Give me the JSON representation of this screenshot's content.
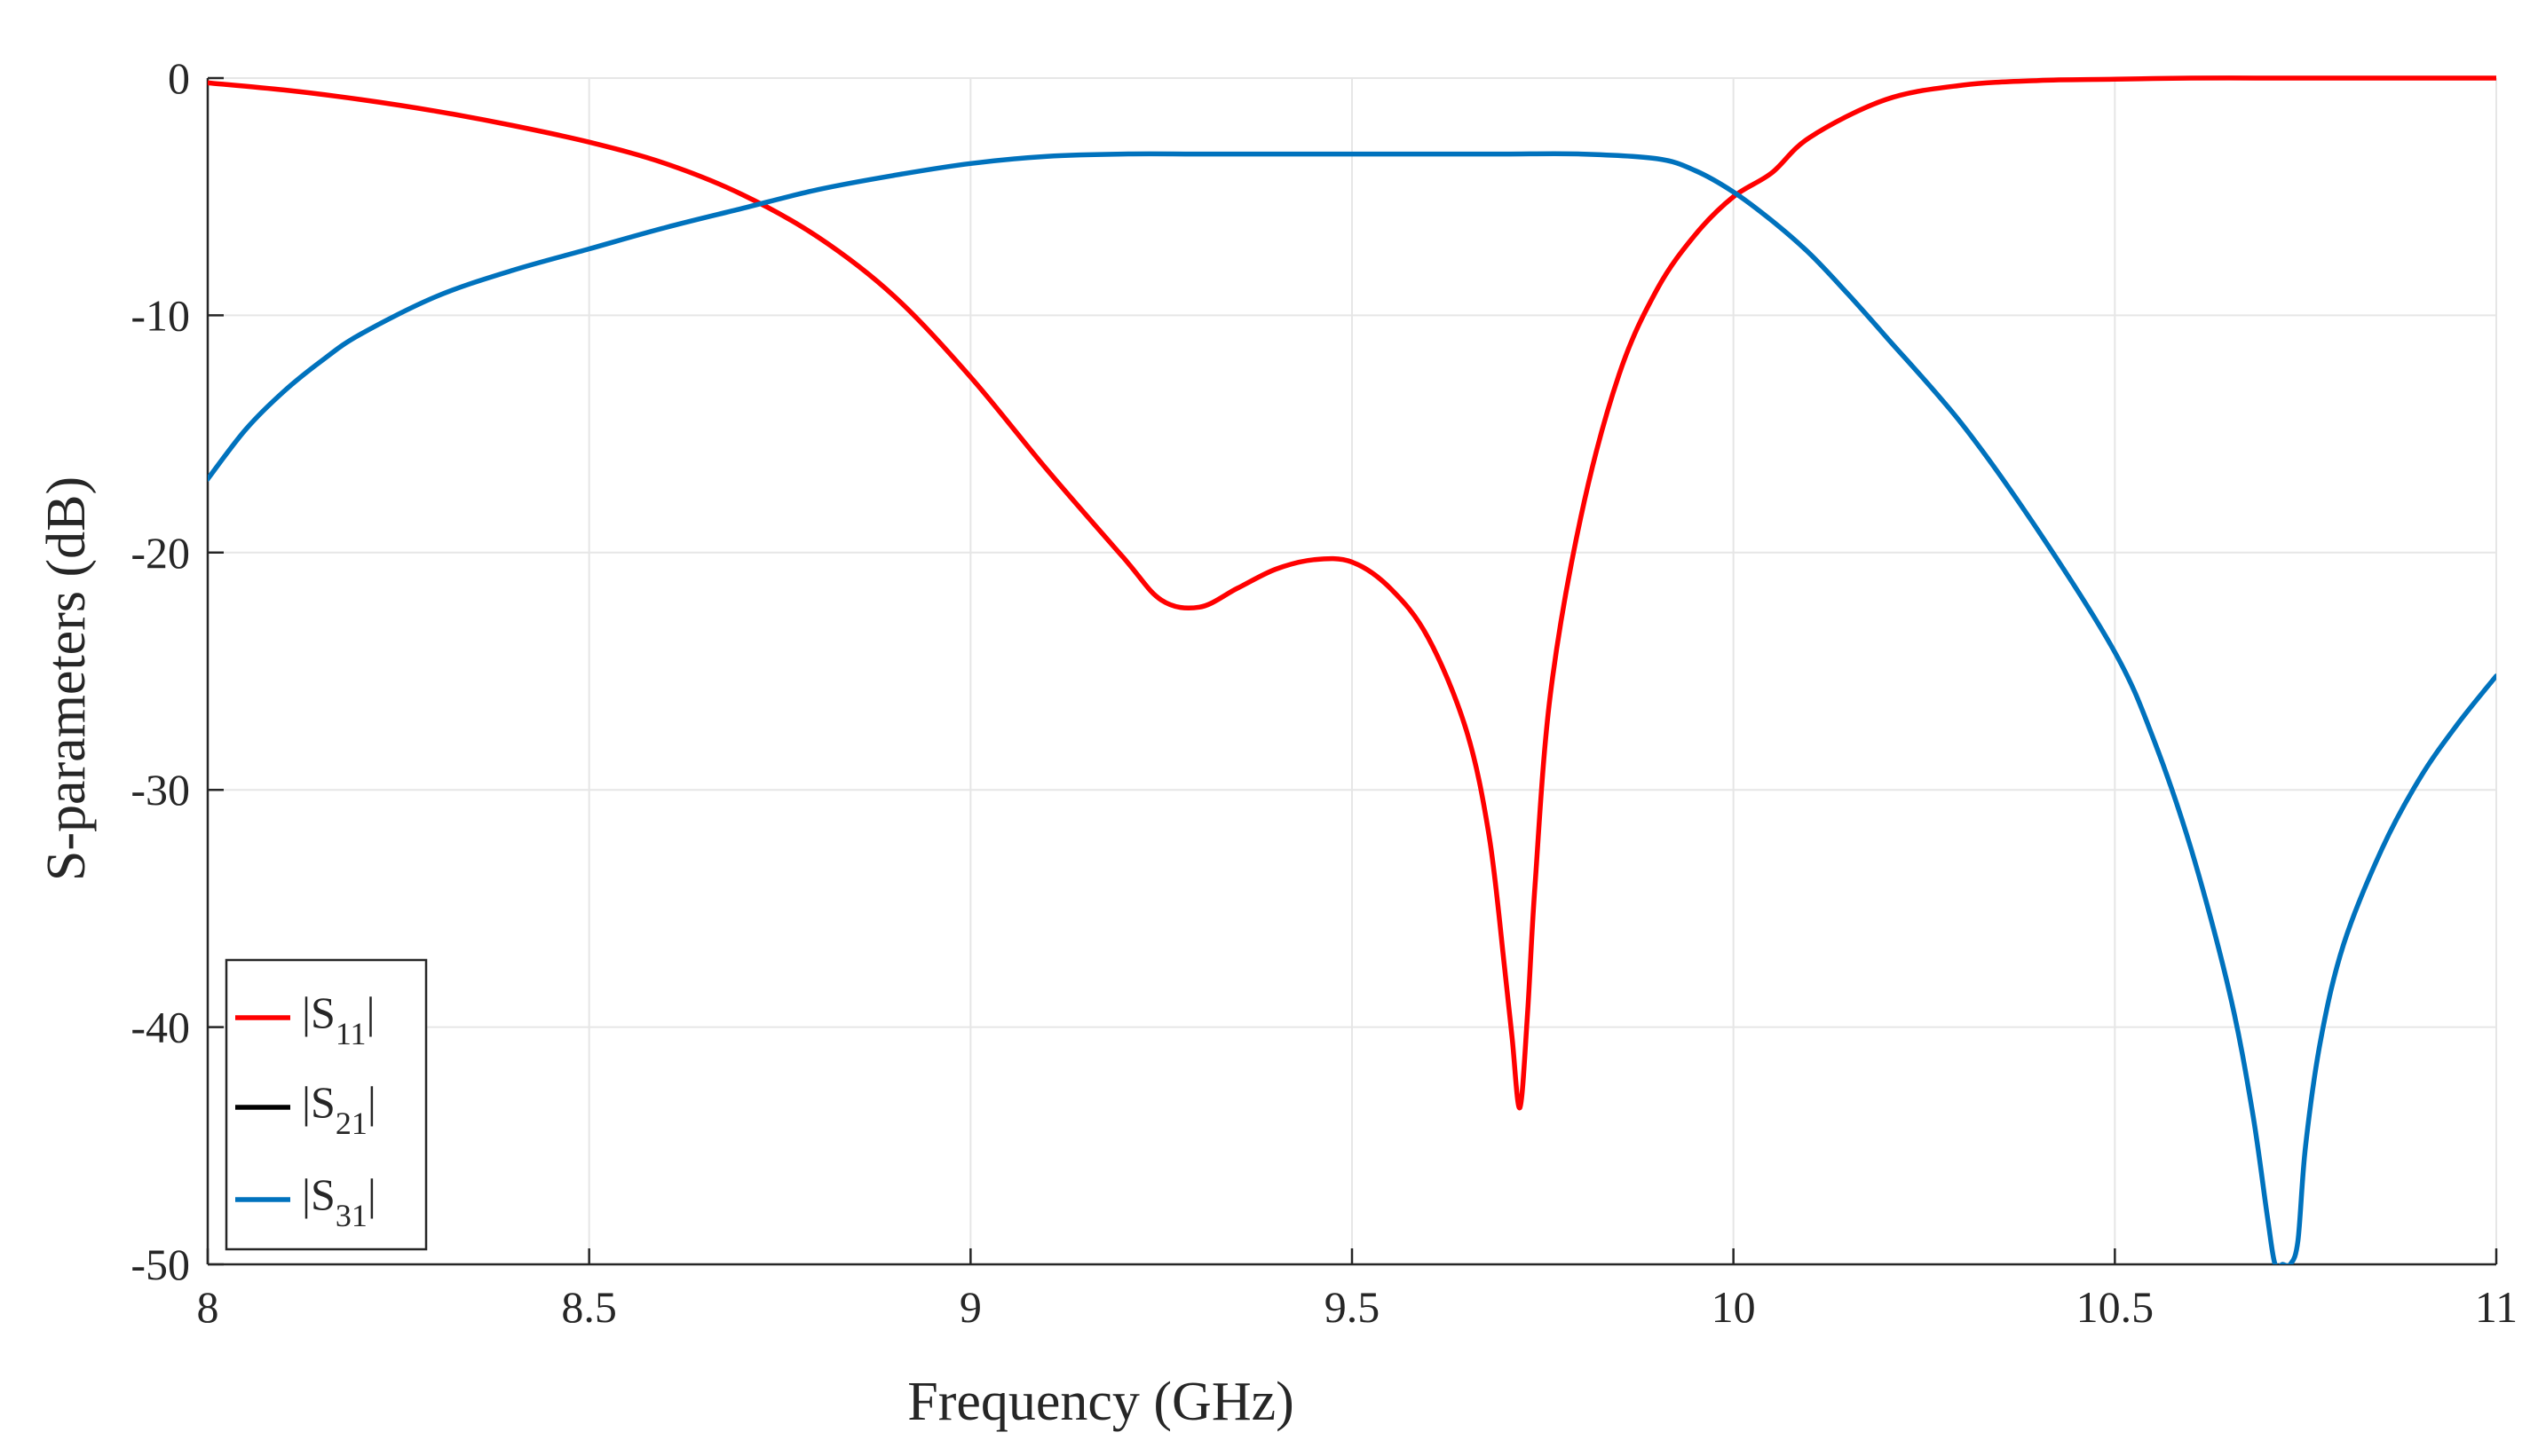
{
  "chart_data": {
    "type": "line",
    "title": "",
    "xlabel": "Frequency (GHz)",
    "ylabel": "S-parameters (dB)",
    "xlim": [
      8,
      11
    ],
    "ylim": [
      -50,
      0
    ],
    "xticks": [
      8,
      8.5,
      9,
      9.5,
      10,
      10.5,
      11
    ],
    "xtick_labels": [
      "8",
      "8.5",
      "9",
      "9.5",
      "10",
      "10.5",
      "11"
    ],
    "yticks": [
      0,
      -10,
      -20,
      -30,
      -40,
      -50
    ],
    "ytick_labels": [
      "0",
      "-10",
      "-20",
      "-30",
      "-40",
      "-50"
    ],
    "grid": true,
    "legend_position": "bottom-left",
    "series": [
      {
        "name": "|S11|",
        "label_main": "|S",
        "label_sub": "11",
        "label_end": "|",
        "color": "#ff0000",
        "x": [
          8.0,
          8.1,
          8.2,
          8.3,
          8.4,
          8.5,
          8.6,
          8.7,
          8.8,
          8.9,
          9.0,
          9.1,
          9.2,
          9.25,
          9.3,
          9.35,
          9.4,
          9.45,
          9.5,
          9.55,
          9.6,
          9.65,
          9.68,
          9.7,
          9.71,
          9.72,
          9.73,
          9.74,
          9.76,
          9.8,
          9.85,
          9.9,
          9.95,
          10.0,
          10.05,
          10.1,
          10.2,
          10.3,
          10.4,
          10.5,
          10.6,
          10.7,
          10.8,
          10.9,
          11.0
        ],
        "y": [
          -0.2,
          -0.5,
          -0.9,
          -1.4,
          -2.0,
          -2.7,
          -3.6,
          -4.9,
          -6.7,
          -9.2,
          -12.6,
          -16.5,
          -20.2,
          -22.0,
          -22.3,
          -21.5,
          -20.7,
          -20.3,
          -20.4,
          -21.5,
          -23.6,
          -27.5,
          -32.0,
          -37.5,
          -40.5,
          -43.4,
          -39.5,
          -34.0,
          -26.0,
          -18.5,
          -12.5,
          -8.9,
          -6.6,
          -5.0,
          -4.0,
          -2.5,
          -0.9,
          -0.3,
          -0.1,
          -0.05,
          0.0,
          0.0,
          0.0,
          0.0,
          0.0
        ]
      },
      {
        "name": "|S21|",
        "label_main": "|S",
        "label_sub": "21",
        "label_end": "|",
        "color": "#000000",
        "x": [],
        "y": []
      },
      {
        "name": "|S31|",
        "label_main": "|S",
        "label_sub": "31",
        "label_end": "|",
        "color": "#0072bd",
        "x": [
          8.0,
          8.05,
          8.1,
          8.15,
          8.2,
          8.3,
          8.4,
          8.5,
          8.6,
          8.7,
          8.8,
          8.9,
          9.0,
          9.1,
          9.2,
          9.3,
          9.4,
          9.5,
          9.6,
          9.7,
          9.8,
          9.9,
          9.95,
          10.0,
          10.05,
          10.1,
          10.15,
          10.2,
          10.3,
          10.4,
          10.5,
          10.55,
          10.6,
          10.65,
          10.68,
          10.7,
          10.71,
          10.72,
          10.73,
          10.74,
          10.75,
          10.77,
          10.8,
          10.85,
          10.9,
          10.95,
          11.0
        ],
        "y": [
          -16.9,
          -14.8,
          -13.2,
          -11.9,
          -10.8,
          -9.2,
          -8.1,
          -7.2,
          -6.3,
          -5.5,
          -4.7,
          -4.1,
          -3.6,
          -3.3,
          -3.2,
          -3.2,
          -3.2,
          -3.2,
          -3.2,
          -3.2,
          -3.2,
          -3.4,
          -3.9,
          -4.8,
          -6.0,
          -7.4,
          -9.1,
          -10.9,
          -14.6,
          -19.1,
          -24.2,
          -27.8,
          -32.5,
          -38.5,
          -43.5,
          -48.0,
          -50.0,
          -50.0,
          -50.0,
          -49.0,
          -45.0,
          -40.5,
          -36.5,
          -32.5,
          -29.5,
          -27.2,
          -25.2
        ]
      }
    ]
  }
}
